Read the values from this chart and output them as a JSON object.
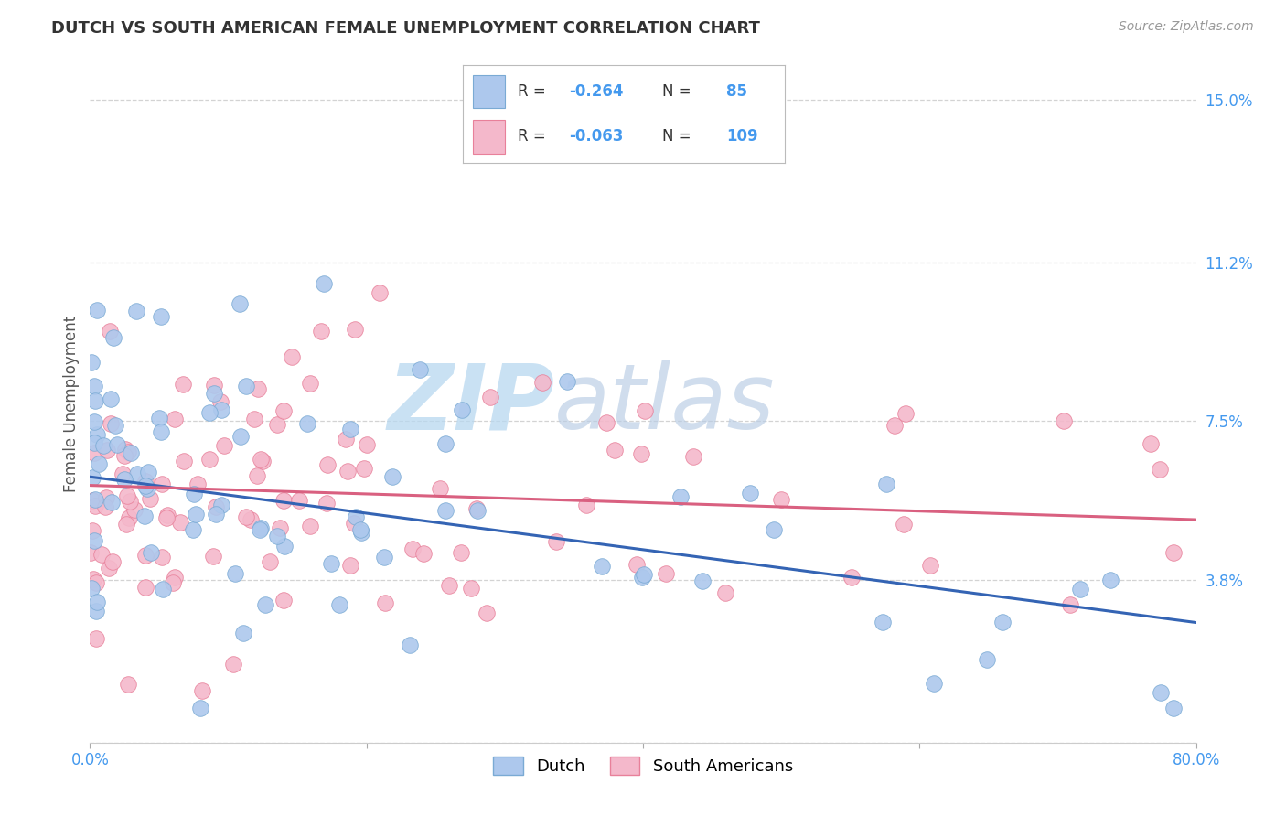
{
  "title": "DUTCH VS SOUTH AMERICAN FEMALE UNEMPLOYMENT CORRELATION CHART",
  "source": "Source: ZipAtlas.com",
  "ylabel": "Female Unemployment",
  "yticks": [
    0.0,
    0.038,
    0.075,
    0.112,
    0.15
  ],
  "ytick_labels": [
    "",
    "3.8%",
    "7.5%",
    "11.2%",
    "15.0%"
  ],
  "xlim": [
    0.0,
    0.8
  ],
  "ylim": [
    0.0,
    0.158
  ],
  "dutch_color": "#adc8ed",
  "dutch_edge_color": "#7aaad4",
  "sa_color": "#f4b8cb",
  "sa_edge_color": "#e8809a",
  "dutch_line_color": "#3464b4",
  "sa_line_color": "#d96080",
  "watermark_zip": "ZIP",
  "watermark_atlas": "atlas",
  "background_color": "#ffffff",
  "grid_color": "#c8c8c8",
  "title_color": "#333333",
  "axis_label_color": "#4499ee",
  "legend_label_dutch": "Dutch",
  "legend_label_sa": "South Americans",
  "dutch_line_x0": 0.0,
  "dutch_line_y0": 0.062,
  "dutch_line_x1": 0.8,
  "dutch_line_y1": 0.028,
  "sa_line_x0": 0.0,
  "sa_line_y0": 0.06,
  "sa_line_x1": 0.8,
  "sa_line_y1": 0.052
}
